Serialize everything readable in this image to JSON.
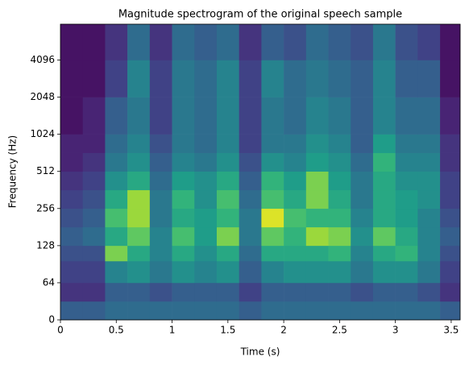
{
  "chart_data": {
    "type": "spectrogram",
    "title": "Magnitude spectrogram of the original speech sample",
    "x_label": "Time (s)",
    "y_label": "Frequency (Hz)",
    "colormap": "viridis",
    "yscale": "symlog",
    "linthresh": 64,
    "log_base": 2,
    "xlim": [
      0,
      3.58
    ],
    "ylim": [
      0,
      8000
    ],
    "xticks": [
      0,
      0.5,
      1,
      1.5,
      2,
      2.5,
      3,
      3.5
    ],
    "yticks": [
      0,
      64,
      128,
      256,
      512,
      1024,
      2048,
      4096
    ],
    "x_edges": [
      0,
      0.2,
      0.4,
      0.6,
      0.8,
      1.0,
      1.2,
      1.4,
      1.6,
      1.8,
      2.0,
      2.2,
      2.4,
      2.6,
      2.8,
      3.0,
      3.2,
      3.4,
      3.58
    ],
    "y_edges": [
      0,
      32,
      64,
      96,
      128,
      181,
      256,
      362,
      512,
      724,
      1024,
      2048,
      4096,
      8000
    ],
    "values": [
      [
        0.3,
        0.3,
        0.35,
        0.35,
        0.35,
        0.35,
        0.35,
        0.35,
        0.3,
        0.35,
        0.35,
        0.35,
        0.35,
        0.35,
        0.35,
        0.35,
        0.35,
        0.3
      ],
      [
        0.15,
        0.15,
        0.3,
        0.3,
        0.25,
        0.3,
        0.3,
        0.3,
        0.2,
        0.3,
        0.3,
        0.3,
        0.3,
        0.25,
        0.3,
        0.3,
        0.25,
        0.15
      ],
      [
        0.2,
        0.2,
        0.45,
        0.5,
        0.4,
        0.5,
        0.45,
        0.5,
        0.3,
        0.45,
        0.5,
        0.5,
        0.5,
        0.4,
        0.5,
        0.5,
        0.4,
        0.2
      ],
      [
        0.25,
        0.25,
        0.8,
        0.6,
        0.45,
        0.6,
        0.5,
        0.6,
        0.35,
        0.6,
        0.6,
        0.6,
        0.65,
        0.45,
        0.6,
        0.65,
        0.45,
        0.25
      ],
      [
        0.3,
        0.35,
        0.6,
        0.75,
        0.45,
        0.7,
        0.55,
        0.8,
        0.4,
        0.75,
        0.65,
        0.85,
        0.8,
        0.5,
        0.75,
        0.6,
        0.45,
        0.3
      ],
      [
        0.25,
        0.3,
        0.7,
        0.85,
        0.4,
        0.6,
        0.55,
        0.65,
        0.4,
        0.95,
        0.7,
        0.65,
        0.65,
        0.45,
        0.6,
        0.55,
        0.45,
        0.25
      ],
      [
        0.2,
        0.25,
        0.6,
        0.85,
        0.4,
        0.65,
        0.5,
        0.7,
        0.35,
        0.7,
        0.6,
        0.8,
        0.6,
        0.4,
        0.6,
        0.55,
        0.5,
        0.2
      ],
      [
        0.15,
        0.2,
        0.5,
        0.6,
        0.35,
        0.55,
        0.5,
        0.6,
        0.3,
        0.65,
        0.55,
        0.8,
        0.55,
        0.4,
        0.6,
        0.5,
        0.5,
        0.2
      ],
      [
        0.1,
        0.15,
        0.4,
        0.5,
        0.3,
        0.45,
        0.4,
        0.5,
        0.25,
        0.5,
        0.45,
        0.55,
        0.5,
        0.35,
        0.65,
        0.45,
        0.45,
        0.15
      ],
      [
        0.1,
        0.1,
        0.35,
        0.45,
        0.25,
        0.4,
        0.35,
        0.45,
        0.2,
        0.4,
        0.4,
        0.5,
        0.45,
        0.3,
        0.55,
        0.4,
        0.4,
        0.15
      ],
      [
        0.05,
        0.1,
        0.3,
        0.4,
        0.2,
        0.4,
        0.35,
        0.45,
        0.2,
        0.4,
        0.35,
        0.45,
        0.4,
        0.3,
        0.45,
        0.35,
        0.35,
        0.1
      ],
      [
        0.05,
        0.05,
        0.2,
        0.45,
        0.2,
        0.4,
        0.35,
        0.45,
        0.2,
        0.45,
        0.35,
        0.4,
        0.35,
        0.3,
        0.45,
        0.3,
        0.3,
        0.05
      ],
      [
        0.05,
        0.05,
        0.15,
        0.35,
        0.15,
        0.35,
        0.3,
        0.35,
        0.15,
        0.3,
        0.25,
        0.35,
        0.3,
        0.25,
        0.4,
        0.25,
        0.2,
        0.05
      ]
    ]
  }
}
